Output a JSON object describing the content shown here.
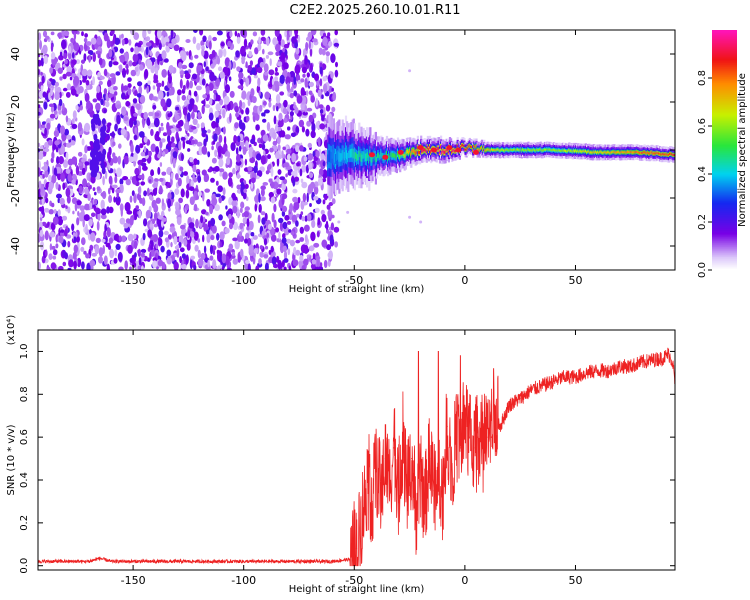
{
  "title": "C2E2.2025.260.10.01.R11",
  "chart_data": [
    {
      "type": "heatmap",
      "title": "C2E2.2025.260.10.01.R11",
      "xlabel": "Height of straight line (km)",
      "ylabel": "Frequency (Hz)",
      "xlim": [
        -193,
        95
      ],
      "ylim": [
        -50,
        50
      ],
      "x_ticks": [
        -150,
        -100,
        -50,
        0,
        50
      ],
      "y_ticks": [
        -40,
        -20,
        0,
        20,
        40
      ],
      "x_tick_labels": [
        "-150",
        "-100",
        "-50",
        "0",
        "50"
      ],
      "y_tick_labels": [
        "-40",
        "-20",
        "0",
        "20",
        "40"
      ],
      "noise_region_x": [
        -193,
        -60
      ],
      "signal_track": {
        "x": [
          -62,
          -50,
          -40,
          -30,
          -20,
          -10,
          0,
          10,
          20,
          40,
          60,
          80,
          95
        ],
        "center_freq": [
          -3,
          -2,
          -3,
          -2,
          0,
          0,
          1,
          0,
          0,
          0,
          -1,
          -1,
          -2
        ],
        "half_width": [
          9,
          6,
          5,
          4,
          3,
          3,
          2,
          2,
          2,
          2,
          2,
          2,
          2
        ],
        "peak_amplitude": [
          0.3,
          0.45,
          0.45,
          0.55,
          0.9,
          0.95,
          0.9,
          0.7,
          0.6,
          0.6,
          0.7,
          0.8,
          0.85
        ]
      },
      "colorbar": {
        "label": "Normalized spectral amplitude",
        "range": [
          0,
          1
        ],
        "ticks": [
          0.0,
          0.2,
          0.4,
          0.6,
          0.8
        ],
        "tick_labels": [
          "0.0",
          "0.2",
          "0.4",
          "0.6",
          "0.8"
        ]
      }
    },
    {
      "type": "line",
      "xlabel": "Height of straight line (km)",
      "ylabel": "SNR (10 * v/v)",
      "scale_note": "(x10⁴)",
      "xlim": [
        -193,
        95
      ],
      "ylim": [
        -0.02,
        1.1
      ],
      "x_ticks": [
        -150,
        -100,
        -50,
        0,
        50
      ],
      "y_ticks": [
        0.0,
        0.2,
        0.4,
        0.6,
        0.8,
        1.0
      ],
      "x_tick_labels": [
        "-150",
        "-100",
        "-50",
        "0",
        "50"
      ],
      "y_tick_labels": [
        "0.0",
        "0.2",
        "0.4",
        "0.6",
        "0.8",
        "1.0"
      ],
      "color": "#ee2222",
      "series": [
        {
          "name": "SNR",
          "x": [
            -193,
            -170,
            -165,
            -160,
            -130,
            -100,
            -80,
            -60,
            -52,
            -49,
            -46,
            -44,
            -42,
            -40,
            -38,
            -36,
            -34,
            -32,
            -30,
            -28,
            -26,
            -24,
            -22,
            -20,
            -18,
            -16,
            -14,
            -12,
            -10,
            -8,
            -6,
            -4,
            -2,
            0,
            2,
            4,
            6,
            8,
            10,
            12,
            14,
            16,
            18,
            20,
            25,
            30,
            35,
            40,
            45,
            50,
            55,
            60,
            65,
            70,
            75,
            80,
            85,
            90,
            92,
            94,
            95
          ],
          "y": [
            0.02,
            0.02,
            0.035,
            0.02,
            0.02,
            0.02,
            0.02,
            0.02,
            0.03,
            0.08,
            0.25,
            0.4,
            0.3,
            0.45,
            0.35,
            0.5,
            0.4,
            0.55,
            0.35,
            0.6,
            0.35,
            0.5,
            0.25,
            0.4,
            0.3,
            0.5,
            0.35,
            0.45,
            0.35,
            0.65,
            0.45,
            0.6,
            0.55,
            0.65,
            0.6,
            0.55,
            0.6,
            0.55,
            0.6,
            0.6,
            0.7,
            0.65,
            0.7,
            0.75,
            0.78,
            0.82,
            0.84,
            0.86,
            0.88,
            0.88,
            0.9,
            0.91,
            0.91,
            0.93,
            0.93,
            0.95,
            0.96,
            0.97,
            0.99,
            0.95,
            0.85
          ],
          "spikes": [
            {
              "x": -21,
              "y": 1.0
            },
            {
              "x": -12,
              "y": 1.0
            },
            {
              "x": -2,
              "y": 0.98
            },
            {
              "x": 13,
              "y": 0.92
            }
          ]
        }
      ]
    }
  ]
}
